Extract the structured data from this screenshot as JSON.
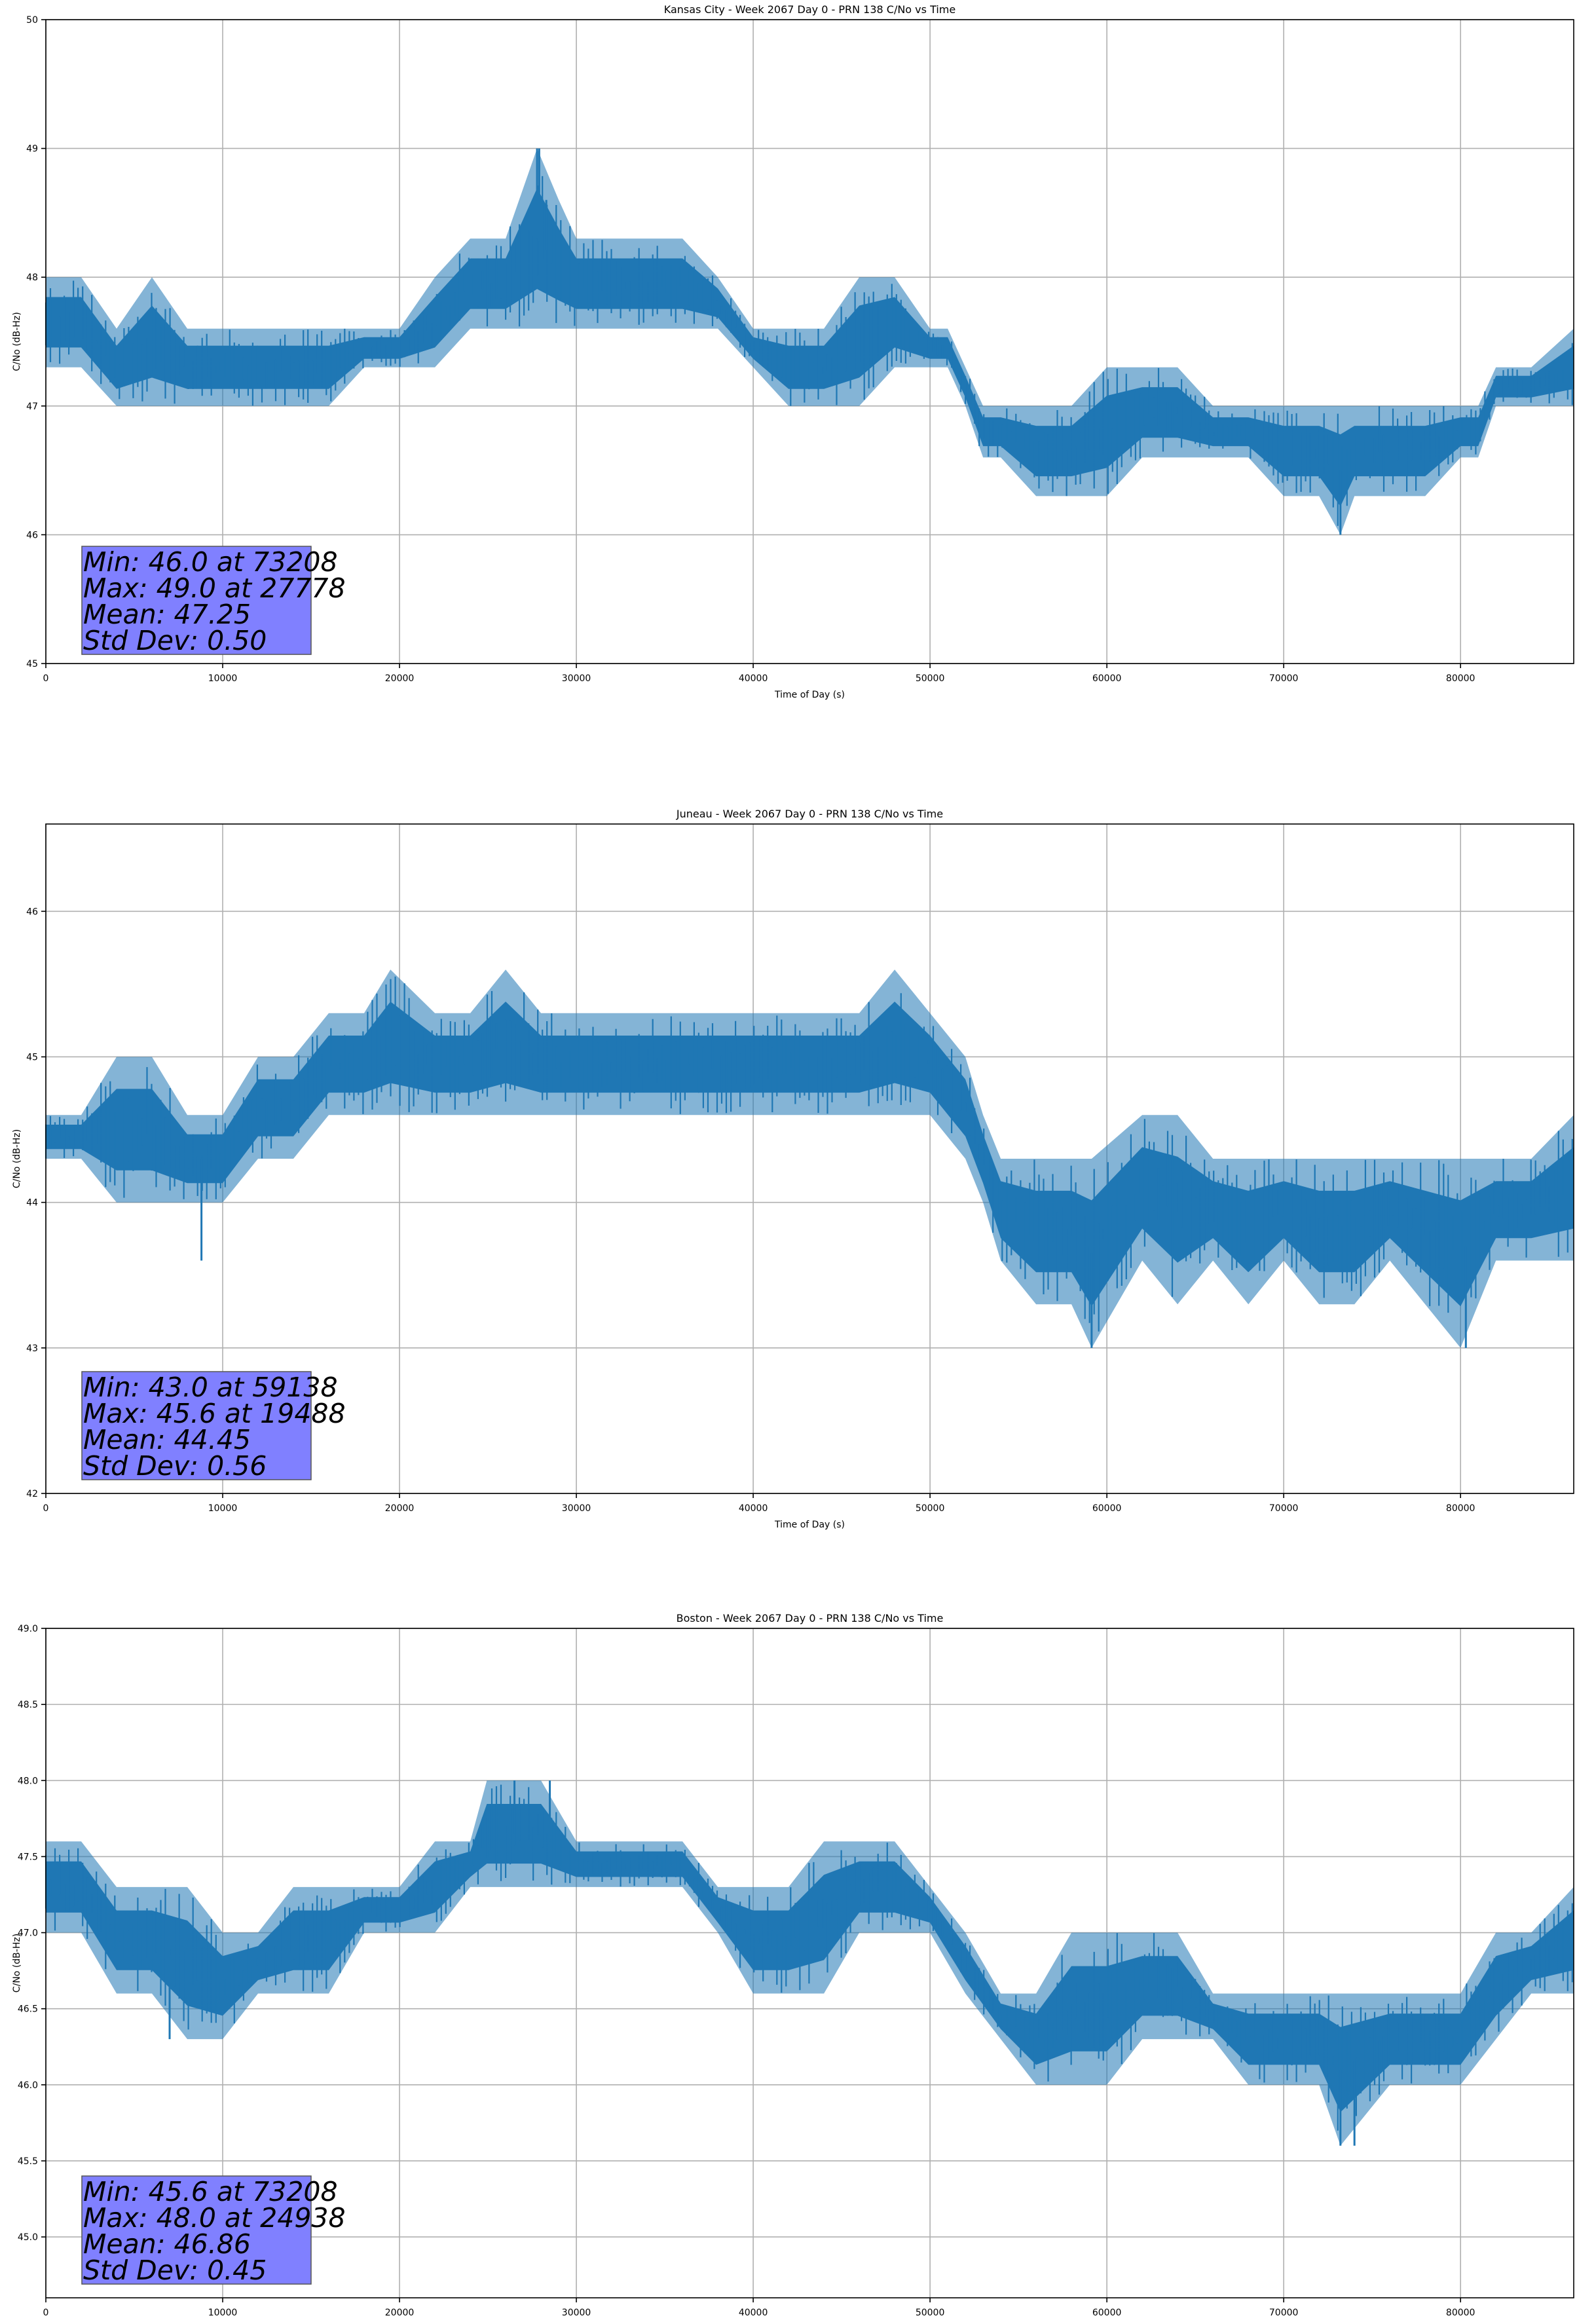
{
  "figure": {
    "x_label": "Time of Day (s)",
    "y_label": "C/No (dB-Hz)"
  },
  "chart_data": [
    {
      "type": "line",
      "title": "Kansas City - Week 2067 Day 0 - PRN 138 C/No vs Time",
      "xlabel": "Time of Day (s)",
      "ylabel": "C/No (dB-Hz)",
      "xlim": [
        0,
        86400
      ],
      "ylim": [
        45,
        50
      ],
      "xticks": [
        0,
        10000,
        20000,
        30000,
        40000,
        50000,
        60000,
        70000,
        80000
      ],
      "yticks": [
        45,
        46,
        47,
        48,
        49,
        50
      ],
      "ytick_labels": [
        "45",
        "46",
        "47",
        "48",
        "49",
        "50"
      ],
      "grid": true,
      "series": [
        {
          "color": "#1f77b4",
          "envelope_x": [
            0,
            2000,
            4000,
            6000,
            8000,
            10000,
            12000,
            14000,
            16000,
            18000,
            20000,
            22000,
            24000,
            26000,
            27778,
            29000,
            30000,
            32000,
            34000,
            36000,
            38000,
            40000,
            42000,
            44000,
            46000,
            48000,
            50000,
            51000,
            52000,
            53000,
            54000,
            56000,
            58000,
            60000,
            62000,
            64000,
            66000,
            68000,
            70000,
            72000,
            73208,
            74000,
            76000,
            78000,
            80000,
            81000,
            82000,
            84000,
            86400
          ],
          "envelope_low": [
            47.3,
            47.3,
            47.0,
            47.0,
            47.0,
            47.0,
            47.0,
            47.0,
            47.0,
            47.3,
            47.3,
            47.3,
            47.6,
            47.6,
            47.6,
            47.6,
            47.6,
            47.6,
            47.6,
            47.6,
            47.6,
            47.3,
            47.0,
            47.0,
            47.0,
            47.3,
            47.3,
            47.3,
            47.0,
            46.6,
            46.6,
            46.3,
            46.3,
            46.3,
            46.6,
            46.6,
            46.6,
            46.6,
            46.3,
            46.3,
            46.0,
            46.3,
            46.3,
            46.3,
            46.6,
            46.6,
            47.0,
            47.0,
            47.0
          ],
          "envelope_high": [
            48.0,
            48.0,
            47.6,
            48.0,
            47.6,
            47.6,
            47.6,
            47.6,
            47.6,
            47.6,
            47.6,
            48.0,
            48.3,
            48.3,
            49.0,
            48.6,
            48.3,
            48.3,
            48.3,
            48.3,
            48.0,
            47.6,
            47.6,
            47.6,
            48.0,
            48.0,
            47.6,
            47.6,
            47.3,
            47.0,
            47.0,
            47.0,
            47.0,
            47.3,
            47.3,
            47.3,
            47.0,
            47.0,
            47.0,
            47.0,
            47.0,
            47.0,
            47.0,
            47.0,
            47.0,
            47.0,
            47.3,
            47.3,
            47.6
          ],
          "spikes": [
            [
              27778,
              49.0
            ],
            [
              27900,
              49.0
            ],
            [
              28300,
              48.6
            ],
            [
              73208,
              46.0
            ]
          ]
        }
      ],
      "annotation": [
        "Min: 46.0 at 73208",
        "Max: 49.0 at 27778",
        "Mean: 47.25",
        "Std Dev: 0.50"
      ]
    },
    {
      "type": "line",
      "title": "Juneau - Week 2067 Day 0 - PRN 138 C/No vs Time",
      "xlabel": "Time of Day (s)",
      "ylabel": "C/No (dB-Hz)",
      "xlim": [
        0,
        86400
      ],
      "ylim": [
        42,
        46.6
      ],
      "xticks": [
        0,
        10000,
        20000,
        30000,
        40000,
        50000,
        60000,
        70000,
        80000
      ],
      "yticks": [
        42,
        43,
        44,
        45,
        46
      ],
      "ytick_labels": [
        "42",
        "43",
        "44",
        "45",
        "46"
      ],
      "grid": true,
      "series": [
        {
          "color": "#1f77b4",
          "envelope_x": [
            0,
            2000,
            4000,
            6000,
            8000,
            10000,
            12000,
            14000,
            16000,
            18000,
            19488,
            22000,
            24000,
            26000,
            28000,
            30000,
            32000,
            34000,
            36000,
            38000,
            40000,
            42000,
            44000,
            46000,
            48000,
            50000,
            52000,
            53000,
            54000,
            56000,
            58000,
            59138,
            62000,
            64000,
            66000,
            68000,
            70000,
            72000,
            74000,
            76000,
            78000,
            80000,
            82000,
            84000,
            86400
          ],
          "envelope_low": [
            44.3,
            44.3,
            44.0,
            44.0,
            44.0,
            44.0,
            44.3,
            44.3,
            44.6,
            44.6,
            44.6,
            44.6,
            44.6,
            44.6,
            44.6,
            44.6,
            44.6,
            44.6,
            44.6,
            44.6,
            44.6,
            44.6,
            44.6,
            44.6,
            44.6,
            44.6,
            44.3,
            44.0,
            43.6,
            43.3,
            43.3,
            43.0,
            43.6,
            43.3,
            43.6,
            43.3,
            43.6,
            43.3,
            43.3,
            43.6,
            43.3,
            43.0,
            43.6,
            43.6,
            43.6
          ],
          "envelope_high": [
            44.6,
            44.6,
            45.0,
            45.0,
            44.6,
            44.6,
            45.0,
            45.0,
            45.3,
            45.3,
            45.6,
            45.3,
            45.3,
            45.6,
            45.3,
            45.3,
            45.3,
            45.3,
            45.3,
            45.3,
            45.3,
            45.3,
            45.3,
            45.3,
            45.6,
            45.3,
            45.0,
            44.6,
            44.3,
            44.3,
            44.3,
            44.3,
            44.6,
            44.6,
            44.3,
            44.3,
            44.3,
            44.3,
            44.3,
            44.3,
            44.3,
            44.3,
            44.3,
            44.3,
            44.6
          ],
          "spikes": [
            [
              8800,
              43.6
            ],
            [
              59138,
              43.0
            ],
            [
              80300,
              43.0
            ]
          ]
        }
      ],
      "annotation": [
        "Min: 43.0 at 59138",
        "Max: 45.6 at 19488",
        "Mean: 44.45",
        "Std Dev: 0.56"
      ]
    },
    {
      "type": "line",
      "title": "Boston - Week 2067 Day 0 - PRN 138 C/No vs Time",
      "xlabel": "Time of Day (s)",
      "ylabel": "C/No (dB-Hz)",
      "xlim": [
        0,
        86400
      ],
      "ylim": [
        44.6,
        49.0
      ],
      "xticks": [
        0,
        10000,
        20000,
        30000,
        40000,
        50000,
        60000,
        70000,
        80000
      ],
      "yticks": [
        45.0,
        45.5,
        46.0,
        46.5,
        47.0,
        47.5,
        48.0,
        48.5,
        49.0
      ],
      "ytick_labels": [
        "45.0",
        "45.5",
        "46.0",
        "46.5",
        "47.0",
        "47.5",
        "48.0",
        "48.5",
        "49.0"
      ],
      "grid": true,
      "series": [
        {
          "color": "#1f77b4",
          "envelope_x": [
            0,
            2000,
            4000,
            6000,
            8000,
            10000,
            12000,
            14000,
            16000,
            18000,
            20000,
            22000,
            24000,
            24938,
            26000,
            28000,
            30000,
            32000,
            34000,
            36000,
            38000,
            40000,
            42000,
            44000,
            46000,
            48000,
            50000,
            52000,
            54000,
            56000,
            58000,
            60000,
            62000,
            64000,
            66000,
            68000,
            70000,
            72000,
            73208,
            76000,
            78000,
            80000,
            82000,
            84000,
            86400
          ],
          "envelope_low": [
            47.0,
            47.0,
            46.6,
            46.6,
            46.3,
            46.3,
            46.6,
            46.6,
            46.6,
            47.0,
            47.0,
            47.0,
            47.3,
            47.3,
            47.3,
            47.3,
            47.3,
            47.3,
            47.3,
            47.3,
            47.0,
            46.6,
            46.6,
            46.6,
            47.0,
            47.0,
            47.0,
            46.6,
            46.3,
            46.0,
            46.0,
            46.0,
            46.3,
            46.3,
            46.3,
            46.0,
            46.0,
            46.0,
            45.6,
            46.0,
            46.0,
            46.0,
            46.3,
            46.6,
            46.6
          ],
          "envelope_high": [
            47.6,
            47.6,
            47.3,
            47.3,
            47.3,
            47.0,
            47.0,
            47.3,
            47.3,
            47.3,
            47.3,
            47.6,
            47.6,
            48.0,
            48.0,
            48.0,
            47.6,
            47.6,
            47.6,
            47.6,
            47.3,
            47.3,
            47.3,
            47.6,
            47.6,
            47.6,
            47.3,
            47.0,
            46.6,
            46.6,
            47.0,
            47.0,
            47.0,
            47.0,
            46.6,
            46.6,
            46.6,
            46.6,
            46.6,
            46.6,
            46.6,
            46.6,
            47.0,
            47.0,
            47.3
          ],
          "spikes": [
            [
              7000,
              46.3
            ],
            [
              26500,
              48.0
            ],
            [
              28500,
              48.0
            ],
            [
              73208,
              45.6
            ],
            [
              74000,
              45.6
            ]
          ]
        }
      ],
      "annotation": [
        "Min: 45.6 at 73208",
        "Max: 48.0 at 24938",
        "Mean: 46.86",
        "Std Dev: 0.45"
      ]
    }
  ]
}
